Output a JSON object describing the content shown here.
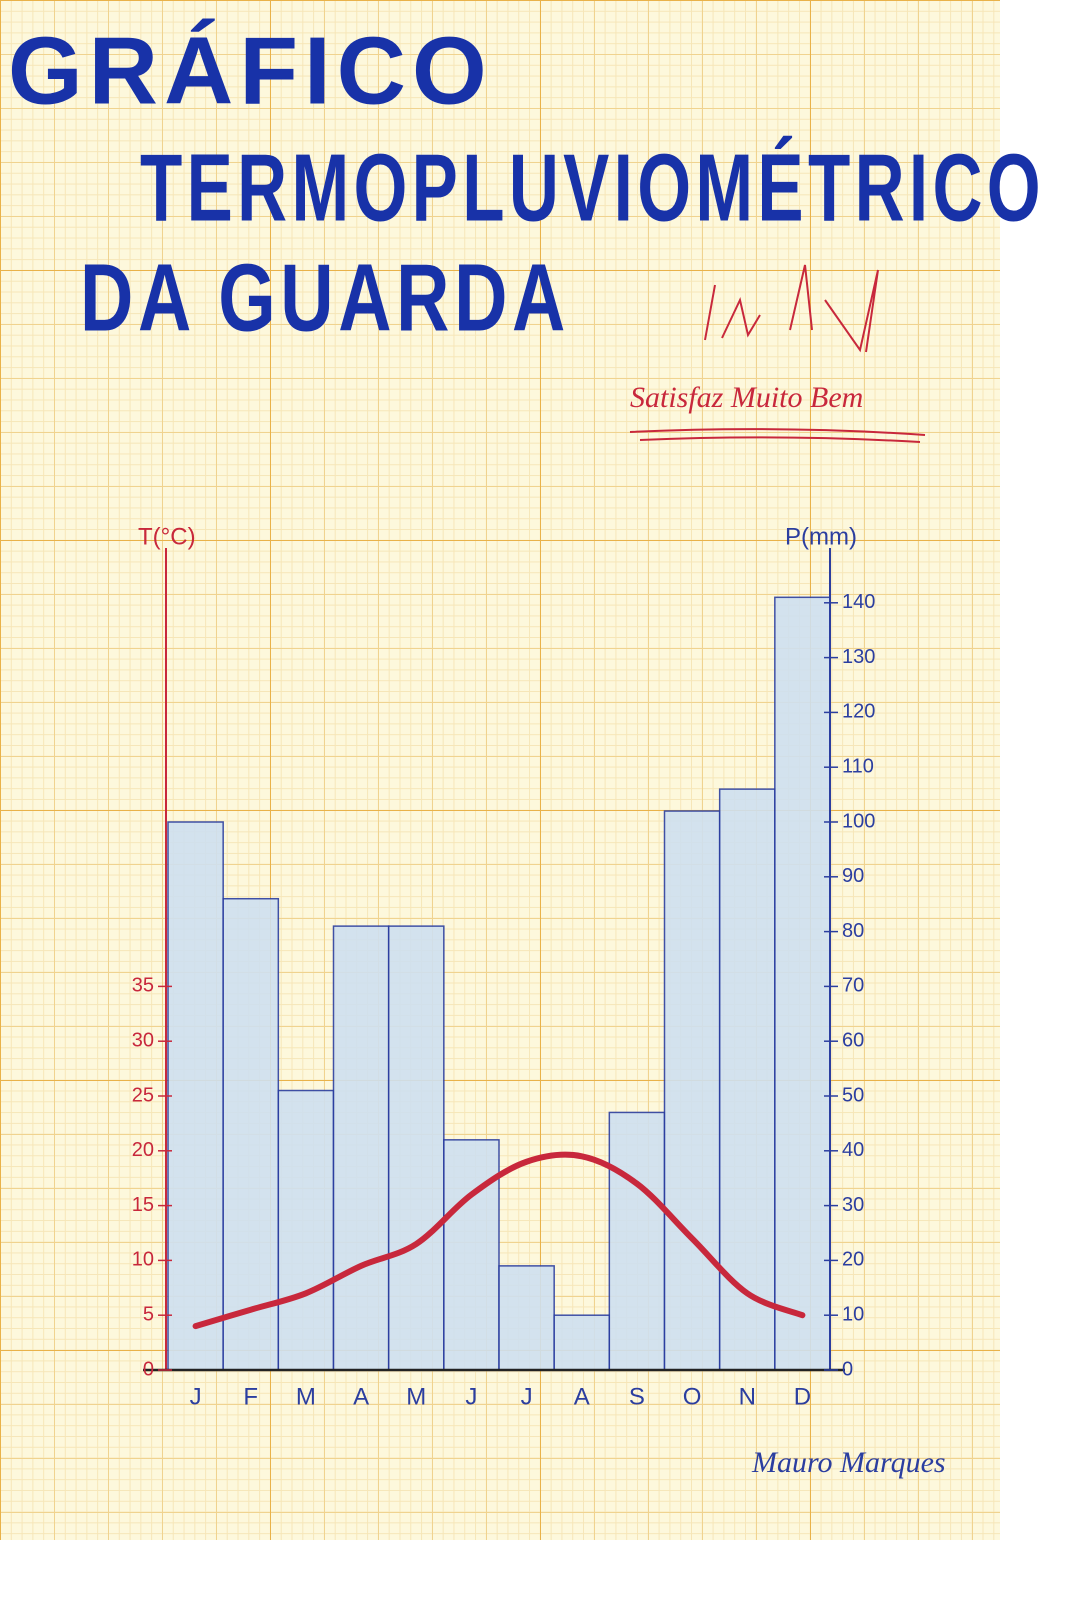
{
  "chart_data": {
    "type": "climograph",
    "title": [
      "GRÁFICO",
      "TERMOPLUVIOMÉTRICO",
      "DA GUARDA"
    ],
    "annotations": [
      "Satisfaz Muito Bem",
      "Mauro Marques"
    ],
    "ylabel": "T(°C)",
    "y2label": "P(mm)",
    "categories": [
      "J",
      "F",
      "M",
      "A",
      "M",
      "J",
      "J",
      "A",
      "S",
      "O",
      "N",
      "D"
    ],
    "series": [
      {
        "name": "P(mm)",
        "type": "bar",
        "axis": "y2",
        "color": "#cfe0f0",
        "values": [
          100,
          86,
          51,
          81,
          81,
          42,
          19,
          10,
          47,
          102,
          106,
          141
        ]
      },
      {
        "name": "T(°C)",
        "type": "line",
        "color": "#c8283c",
        "values": [
          4,
          5.5,
          7,
          9.5,
          11.5,
          16,
          19,
          19.5,
          17,
          12,
          7,
          5
        ]
      }
    ],
    "ylim": [
      0,
      75
    ],
    "yticks": [
      0,
      5,
      10,
      15,
      20,
      25,
      30,
      35
    ],
    "y2lim": [
      0,
      150
    ],
    "y2ticks": [
      0,
      10,
      20,
      30,
      40,
      50,
      60,
      70,
      80,
      90,
      100,
      110,
      120,
      130,
      140
    ]
  }
}
